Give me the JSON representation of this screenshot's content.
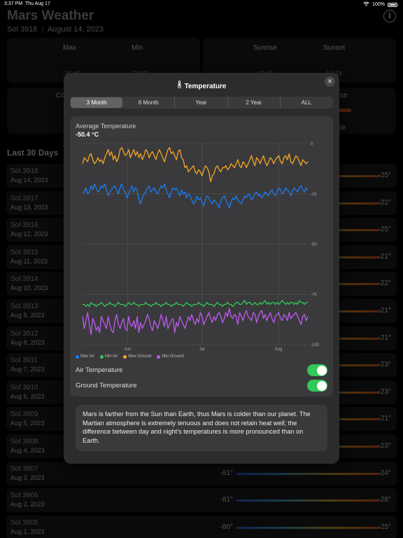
{
  "status": {
    "time": "3:37 PM",
    "date": "Thu Aug 17",
    "battery": "100%"
  },
  "app": {
    "title": "Mars Weather",
    "sol": "Sol 3918",
    "separator": "|",
    "earth_date": "August 14, 2023",
    "info_icon": "info-icon",
    "card1": {
      "max_label": "Max",
      "min_label": "Min",
      "max_val": "-25 °C",
      "min_val": "-79 °C"
    },
    "card2": {
      "sunrise_label": "Sunrise",
      "sunset_label": "Sunset",
      "sunrise_val": "05:40",
      "sunset_val": "17:33"
    },
    "card3_label": "Co",
    "card4_label": "ce",
    "card4_sub": "ate",
    "section": "Last 30 Days",
    "rows": [
      {
        "sol": "Sol 3918",
        "date": "Aug 14, 2023",
        "min": "",
        "max": "-25°"
      },
      {
        "sol": "Sol 3917",
        "date": "Aug 13, 2023",
        "min": "",
        "max": "-22°"
      },
      {
        "sol": "Sol 3916",
        "date": "Aug 12, 2023",
        "min": "",
        "max": "-25°"
      },
      {
        "sol": "Sol 3915",
        "date": "Aug 11, 2023",
        "min": "",
        "max": "-21°"
      },
      {
        "sol": "Sol 3914",
        "date": "Aug 10, 2023",
        "min": "",
        "max": "-22°"
      },
      {
        "sol": "Sol 3913",
        "date": "Aug 9, 2023",
        "min": "",
        "max": "-21°"
      },
      {
        "sol": "Sol 3912",
        "date": "Aug 8, 2023",
        "min": "",
        "max": "-21°"
      },
      {
        "sol": "Sol 3911",
        "date": "Aug 7, 2023",
        "min": "",
        "max": "-23°"
      },
      {
        "sol": "Sol 3910",
        "date": "Aug 6, 2023",
        "min": "",
        "max": "-23°"
      },
      {
        "sol": "Sol 3909",
        "date": "Aug 5, 2023",
        "min": "",
        "max": "-21°"
      },
      {
        "sol": "Sol 3908",
        "date": "Aug 4, 2023",
        "min": "",
        "max": "-23°"
      },
      {
        "sol": "Sol 3907",
        "date": "Aug 3, 2023",
        "min": "-81°",
        "max": "-24°"
      },
      {
        "sol": "Sol 3906",
        "date": "Aug 2, 2023",
        "min": "-81°",
        "max": "-28°"
      },
      {
        "sol": "Sol 3905",
        "date": "Aug 1, 2023",
        "min": "-80°",
        "max": "-25°"
      }
    ]
  },
  "modal": {
    "title": "Temperature",
    "close_icon": "close-icon",
    "tabs": [
      {
        "label": "3 Month",
        "active": true
      },
      {
        "label": "6 Month",
        "active": false
      },
      {
        "label": "Year",
        "active": false
      },
      {
        "label": "2 Year",
        "active": false
      },
      {
        "label": "ALL",
        "active": false
      }
    ],
    "chart_title": "Average Temperature",
    "chart_value": "-50.4 °C",
    "toggles": [
      {
        "label": "Air Temperature",
        "on": true
      },
      {
        "label": "Ground Temperature",
        "on": true
      }
    ],
    "description": "Mars is farther from the Sun than Earth, thus Mars is colder than our planet. The Martian atmosphere is extremely tenuous and does not retain heat well; the difference between day and night's temperatures is more pronounced than on Earth."
  },
  "chart_data": {
    "type": "line",
    "ylim": [
      -100,
      0
    ],
    "yticks": [
      0,
      -25,
      -50,
      -75,
      -100
    ],
    "xticks": [
      "Jun",
      "Jul",
      "Aug"
    ],
    "colors": {
      "Max Air": "#1a7cf5",
      "Min Air": "#34c759",
      "Max Ground": "#f5a623",
      "Min Ground": "#bf5af2"
    },
    "series": [
      {
        "name": "Max Ground",
        "values": [
          -10,
          -7,
          -8,
          -9,
          -6,
          -5,
          -8,
          -10,
          -9,
          -7,
          -9,
          -8,
          -10,
          -7,
          -5,
          -3,
          -6,
          -4,
          -8,
          -6,
          -9,
          -7,
          -3,
          -2,
          -4,
          -6,
          -5,
          -3,
          -7,
          -5,
          -3,
          -6,
          -4,
          -7,
          -5,
          -8,
          -6,
          -3,
          -4,
          -7,
          -5,
          -4,
          -6,
          -8,
          -5,
          -3,
          -5,
          -7,
          -9,
          -6,
          -3,
          -2,
          -5,
          -4,
          -6,
          -8,
          -4,
          -3,
          -7,
          -8,
          -12,
          -11,
          -14,
          -13,
          -12,
          -11,
          -14,
          -15,
          -13,
          -14,
          -16,
          -13,
          -11,
          -12,
          -14,
          -19,
          -16,
          -15,
          -12,
          -11,
          -13,
          -14,
          -12,
          -12,
          -11,
          -13,
          -12,
          -10,
          -11,
          -12,
          -10,
          -8,
          -11,
          -12,
          -9,
          -10,
          -12,
          -10,
          -8,
          -6,
          -9,
          -11,
          -7,
          -8,
          -10,
          -8,
          -6,
          -9,
          -11,
          -9,
          -7,
          -8,
          -10,
          -8,
          -7,
          -6,
          -9,
          -10,
          -7,
          -6,
          -8,
          -5,
          -9,
          -10,
          -8,
          -6,
          -7,
          -9,
          -11,
          -8,
          -9,
          -10,
          -9
        ]
      },
      {
        "name": "Max Air",
        "values": [
          -25,
          -24,
          -22,
          -25,
          -24,
          -21,
          -23,
          -20,
          -22,
          -24,
          -23,
          -21,
          -22,
          -20,
          -23,
          -26,
          -24,
          -23,
          -22,
          -21,
          -23,
          -25,
          -22,
          -20,
          -23,
          -24,
          -27,
          -25,
          -23,
          -21,
          -24,
          -22,
          -23,
          -28,
          -30,
          -27,
          -25,
          -24,
          -22,
          -21,
          -24,
          -23,
          -22,
          -24,
          -25,
          -23,
          -21,
          -22,
          -20,
          -23,
          -25,
          -27,
          -24,
          -22,
          -23,
          -22,
          -24,
          -26,
          -23,
          -25,
          -24,
          -27,
          -25,
          -26,
          -28,
          -30,
          -29,
          -26,
          -28,
          -27,
          -29,
          -31,
          -28,
          -26,
          -27,
          -29,
          -30,
          -28,
          -29,
          -30,
          -32,
          -29,
          -27,
          -26,
          -28,
          -30,
          -32,
          -29,
          -27,
          -28,
          -26,
          -28,
          -29,
          -30,
          -28,
          -26,
          -27,
          -25,
          -26,
          -28,
          -27,
          -25,
          -24,
          -26,
          -25,
          -27,
          -26,
          -24,
          -25,
          -26,
          -24,
          -23,
          -25,
          -26,
          -24,
          -22,
          -23,
          -25,
          -24,
          -22,
          -23,
          -24,
          -26,
          -24,
          -22,
          -23,
          -24,
          -22,
          -21,
          -23,
          -24,
          -22,
          -23
        ]
      },
      {
        "name": "Min Air",
        "values": [
          -80,
          -80,
          -81,
          -80,
          -81,
          -79,
          -80,
          -80,
          -81,
          -80,
          -80,
          -79,
          -80,
          -81,
          -80,
          -80,
          -79,
          -80,
          -80,
          -81,
          -80,
          -79,
          -80,
          -80,
          -80,
          -81,
          -80,
          -79,
          -80,
          -80,
          -79,
          -80,
          -80,
          -81,
          -80,
          -80,
          -80,
          -79,
          -80,
          -80,
          -81,
          -80,
          -80,
          -79,
          -80,
          -80,
          -81,
          -80,
          -80,
          -79,
          -80,
          -80,
          -81,
          -80,
          -80,
          -79,
          -80,
          -80,
          -80,
          -81,
          -80,
          -79,
          -80,
          -80,
          -81,
          -80,
          -80,
          -80,
          -79,
          -80,
          -80,
          -81,
          -80,
          -79,
          -80,
          -80,
          -80,
          -81,
          -80,
          -79,
          -80,
          -80,
          -81,
          -80,
          -80,
          -79,
          -80,
          -80,
          -81,
          -80,
          -79,
          -79,
          -80,
          -80,
          -79,
          -78,
          -80,
          -79,
          -79,
          -80,
          -80,
          -79,
          -80,
          -80,
          -79,
          -80,
          -79,
          -78,
          -80,
          -79,
          -80,
          -79,
          -79,
          -80,
          -79,
          -80,
          -79,
          -78,
          -79,
          -80,
          -79,
          -80,
          -79,
          -79,
          -80,
          -79,
          -80,
          -78,
          -79,
          -79,
          -80,
          -79,
          -79
        ]
      },
      {
        "name": "Min Ground",
        "values": [
          -86,
          -92,
          -88,
          -84,
          -90,
          -95,
          -87,
          -89,
          -93,
          -91,
          -94,
          -86,
          -88,
          -90,
          -92,
          -86,
          -90,
          -93,
          -94,
          -88,
          -85,
          -90,
          -92,
          -89,
          -87,
          -92,
          -93,
          -86,
          -90,
          -91,
          -88,
          -92,
          -86,
          -94,
          -89,
          -92,
          -90,
          -88,
          -85,
          -87,
          -91,
          -93,
          -88,
          -90,
          -92,
          -89,
          -85,
          -88,
          -91,
          -86,
          -92,
          -90,
          -88,
          -87,
          -94,
          -89,
          -91,
          -86,
          -88,
          -90,
          -92,
          -89,
          -86,
          -88,
          -85,
          -88,
          -90,
          -87,
          -89,
          -84,
          -86,
          -90,
          -88,
          -86,
          -84,
          -87,
          -89,
          -86,
          -88,
          -85,
          -84,
          -86,
          -89,
          -87,
          -84,
          -86,
          -82,
          -86,
          -87,
          -85,
          -86,
          -90,
          -84,
          -86,
          -88,
          -85,
          -83,
          -86,
          -87,
          -88,
          -84,
          -85,
          -89,
          -86,
          -84,
          -83,
          -87,
          -85,
          -88,
          -86,
          -84,
          -87,
          -89,
          -86,
          -85,
          -84,
          -87,
          -88,
          -85,
          -86,
          -88,
          -84,
          -87,
          -86,
          -85,
          -84,
          -86,
          -88,
          -90,
          -86,
          -85,
          -88,
          -86
        ]
      }
    ]
  }
}
